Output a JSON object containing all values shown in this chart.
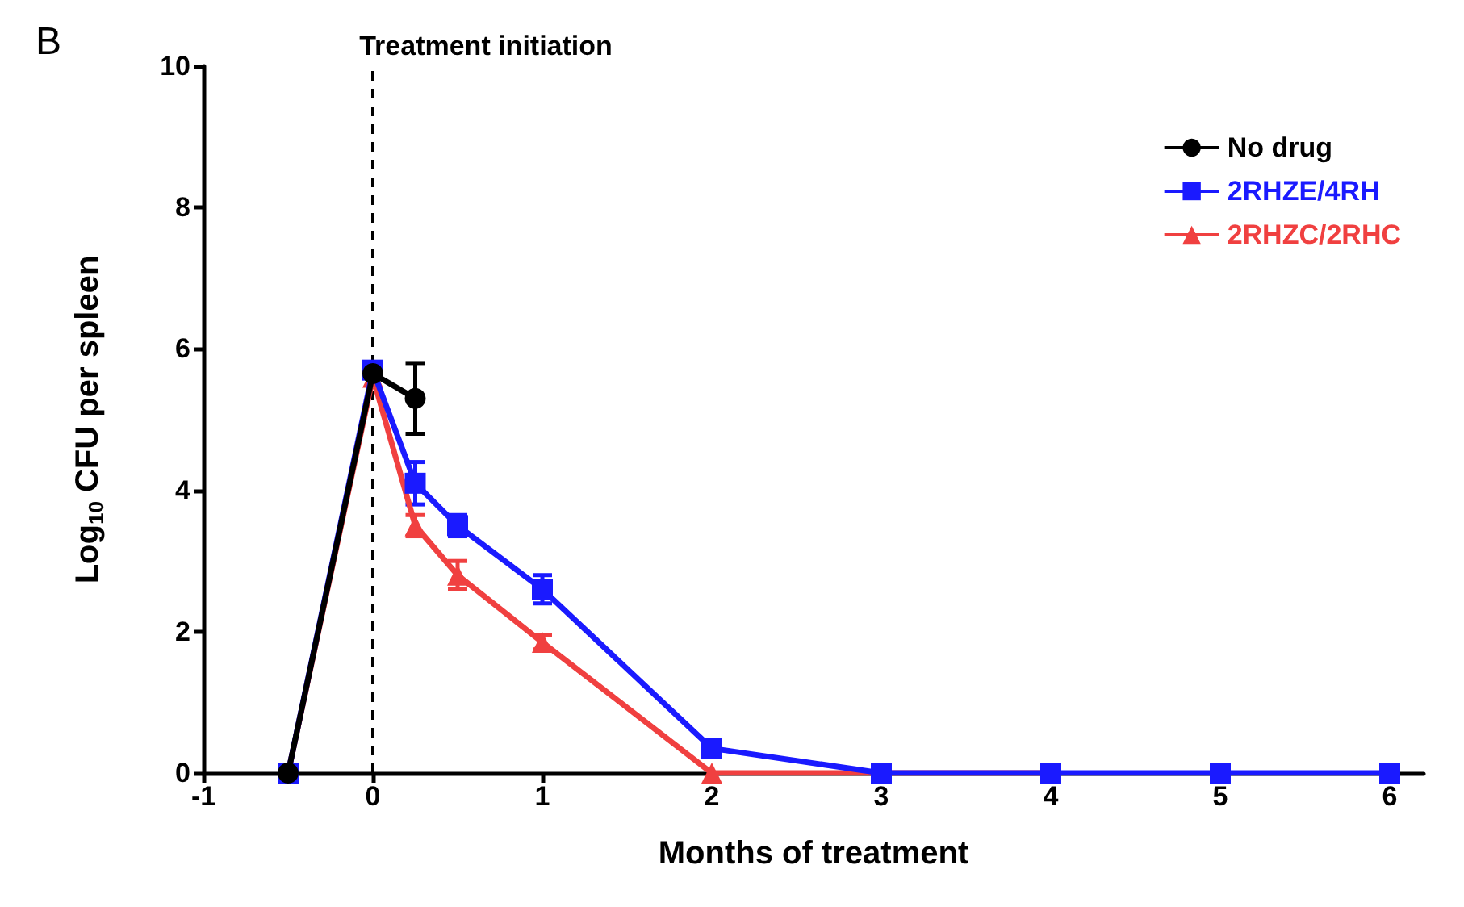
{
  "chart_data": {
    "type": "line",
    "xlabel": "Months of treatment",
    "ylabel": "Log$_{10}$ CFU per spleen",
    "annotations": [
      "B"
    ],
    "xlim": [
      -1,
      6.2
    ],
    "xticks": [
      -1,
      0,
      1,
      2,
      3,
      4,
      5,
      6
    ],
    "ylim": [
      0,
      10
    ],
    "yticks": [
      0,
      2,
      4,
      6,
      8,
      10
    ],
    "grid": false,
    "legend": "top right",
    "ref_lines": [
      {
        "axis": "x",
        "value": 0,
        "label": "Treatment initiation",
        "color": "#000000",
        "line_style": "dashed"
      }
    ],
    "series": [
      {
        "name": "No drug",
        "color": "#000000",
        "marker": "circle",
        "x": [
          -0.5,
          0,
          0.25
        ],
        "values": [
          0,
          5.65,
          5.3
        ],
        "errors": [
          null,
          null,
          0.5
        ]
      },
      {
        "name": "2RHZE/4RH",
        "color": "#1a1aff",
        "marker": "square",
        "x": [
          -0.5,
          0,
          0.25,
          0.5,
          1,
          2,
          3,
          4,
          5,
          6
        ],
        "values": [
          0,
          5.7,
          4.1,
          3.5,
          2.6,
          0.35,
          0,
          0,
          0,
          0
        ],
        "errors": [
          null,
          null,
          0.3,
          0.15,
          0.2,
          0.1,
          null,
          null,
          null,
          null
        ]
      },
      {
        "name": "2RHZC/2RHC",
        "color": "#f04040",
        "marker": "triangle",
        "x": [
          -0.5,
          0,
          0.25,
          0.5,
          1,
          2,
          3,
          4
        ],
        "values": [
          0,
          5.6,
          3.5,
          2.8,
          1.85,
          0,
          0,
          0
        ],
        "errors": [
          null,
          null,
          0.15,
          0.2,
          0.1,
          null,
          null,
          null
        ]
      }
    ]
  }
}
